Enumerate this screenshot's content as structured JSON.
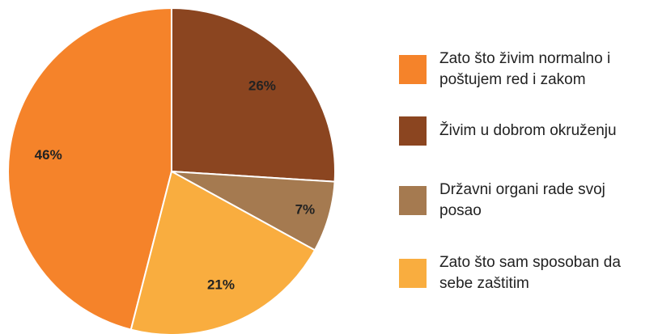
{
  "chart_data": {
    "type": "pie",
    "categories": [
      "Zato što živim normalno i poštujem red i zakom",
      "Živim u dobrom okruženju",
      "Državni organi rade svoj posao",
      "Zato što sam sposoban da sebe zaštitim"
    ],
    "values": [
      46,
      26,
      7,
      21
    ],
    "value_labels": [
      "46%",
      "26%",
      "7%",
      "21%"
    ],
    "colors": [
      "#f5832a",
      "#8b4520",
      "#a57a50",
      "#f9ad3f"
    ]
  }
}
